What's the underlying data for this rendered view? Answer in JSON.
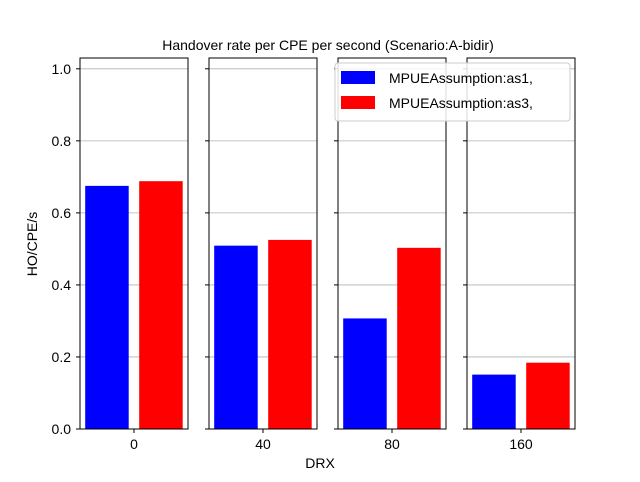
{
  "chart_data": {
    "type": "bar",
    "title": "Handover rate per CPE per second (Scenario:A-bidir)",
    "xlabel": "DRX",
    "ylabel": "HO/CPE/s",
    "ylim": [
      0.0,
      1.03
    ],
    "yticks": [
      "0.0",
      "0.2",
      "0.4",
      "0.6",
      "0.8",
      "1.0"
    ],
    "grid": "horizontal",
    "legend_position": "top-right",
    "categories": [
      "0",
      "40",
      "80",
      "160"
    ],
    "series": [
      {
        "name": "MPUEAssumption:as1,",
        "color": "#0000ff",
        "values": [
          0.675,
          0.509,
          0.307,
          0.151
        ]
      },
      {
        "name": "MPUEAssumption:as3,",
        "color": "#ff0000",
        "values": [
          0.688,
          0.525,
          0.503,
          0.184
        ]
      }
    ]
  }
}
